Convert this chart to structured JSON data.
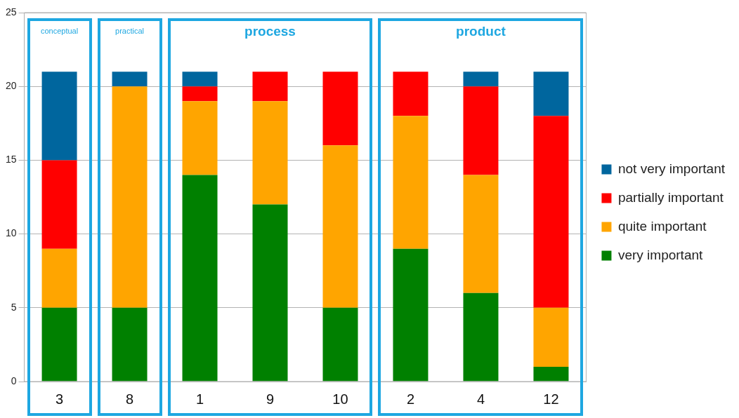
{
  "chart_data": {
    "type": "bar",
    "stacked": true,
    "categories": [
      "3",
      "8",
      "1",
      "9",
      "10",
      "2",
      "4",
      "12"
    ],
    "series": [
      {
        "name": "very important",
        "color": "#008000",
        "values": [
          5,
          5,
          14,
          12,
          5,
          9,
          6,
          1
        ]
      },
      {
        "name": "quite important",
        "color": "#ffa500",
        "values": [
          4,
          15,
          5,
          7,
          11,
          9,
          8,
          4
        ]
      },
      {
        "name": "partially important",
        "color": "#ff0000",
        "values": [
          6,
          0,
          1,
          2,
          5,
          3,
          6,
          13
        ]
      },
      {
        "name": "not very important",
        "color": "#00669e",
        "values": [
          6,
          1,
          1,
          0,
          0,
          0,
          1,
          3
        ]
      }
    ],
    "ylim": [
      0,
      25
    ],
    "yticks": [
      0,
      5,
      10,
      15,
      20,
      25
    ],
    "grid": "y",
    "legend": "right",
    "annotations": [
      "conceptual",
      "practical",
      "process",
      "product"
    ]
  }
}
